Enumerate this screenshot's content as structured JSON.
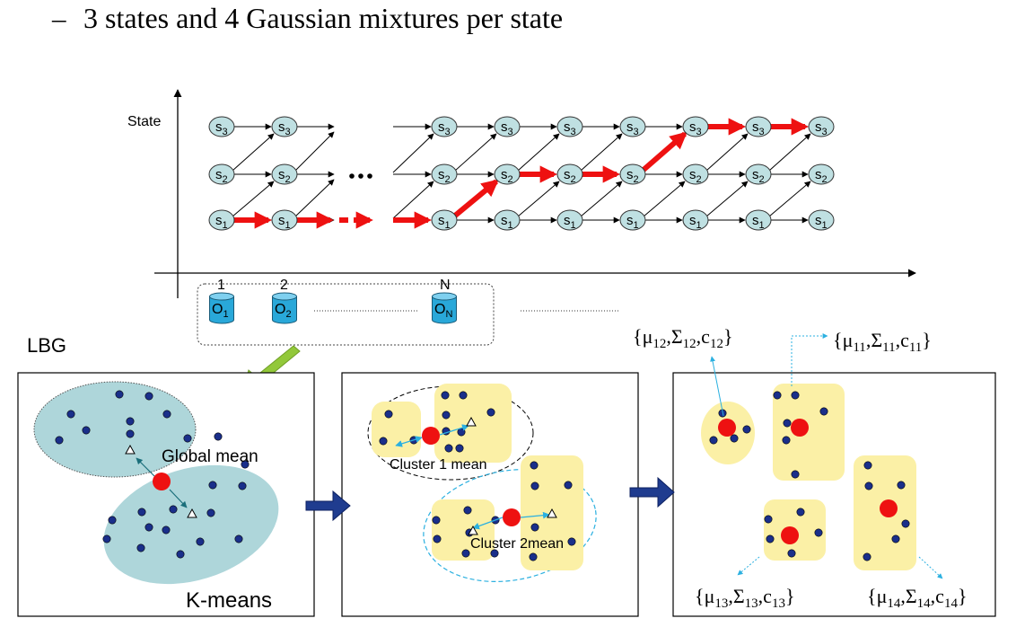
{
  "slide": {
    "bullet_dash": "–",
    "bullet_text": "3 states and 4 Gaussian mixtures per state"
  },
  "trellis": {
    "y_axis_label": "State",
    "state_main": "s",
    "state_subs": [
      "1",
      "2",
      "3"
    ],
    "time_labels": [
      "1",
      "2",
      "N"
    ],
    "obs_main": "O",
    "obs_subs": [
      "1",
      "2",
      "N"
    ],
    "ellipsis": "…",
    "colors": {
      "state_fill": "#bfe0e2",
      "obs_fill": "#29a8d9",
      "path": "#ee1111"
    }
  },
  "lbg": {
    "title": "LBG",
    "panel1": {
      "global_mean_label": "Global mean",
      "kmeans_label": "K-means"
    },
    "panel2": {
      "cluster1_label": "Cluster 1 mean",
      "cluster2_label": "Cluster 2mean"
    },
    "panel3": {
      "mixtures": [
        {
          "mu": "μ",
          "mu_sub": "12",
          "sigma": "Σ",
          "sigma_sub": "12",
          "c": "c",
          "c_sub": "12"
        },
        {
          "mu": "μ",
          "mu_sub": "11",
          "sigma": "Σ",
          "sigma_sub": "11",
          "c": "c",
          "c_sub": "11"
        },
        {
          "mu": "μ",
          "mu_sub": "13",
          "sigma": "Σ",
          "sigma_sub": "13",
          "c": "c",
          "c_sub": "13"
        },
        {
          "mu": "μ",
          "mu_sub": "14",
          "sigma": "Σ",
          "sigma_sub": "14",
          "c": "c",
          "c_sub": "14"
        }
      ]
    },
    "colors": {
      "cluster_fill": "#aed6da",
      "box_fill": "#fbf0a6",
      "point": "#1a2f8a",
      "mean": "#ee1111",
      "flow_arrow": "#1f3c8f",
      "link_arrow": "#2bb0e0",
      "down_arrow": "#92c83a"
    }
  }
}
